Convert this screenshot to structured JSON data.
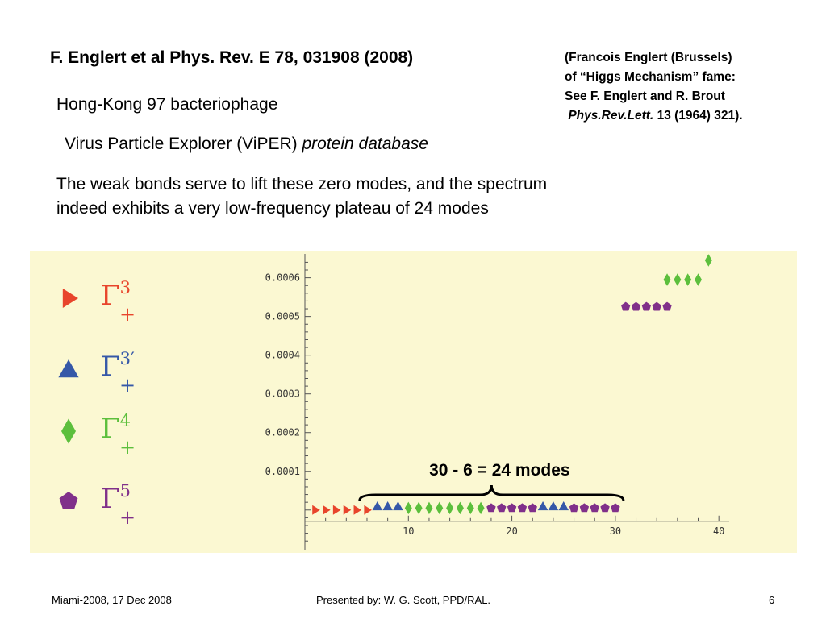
{
  "slide": {
    "reference_title": "F. Englert et al Phys. Rev. E 78, 031908 (2008)",
    "side_note": {
      "line1": "(Francois Englert (Brussels)",
      "line2": "of “Higgs Mechanism” fame:",
      "line3": "See F. Englert and R. Brout",
      "journal": "Phys.Rev.Lett.",
      "citation": " 13 (1964) 321)."
    },
    "phage_line": "Hong-Kong 97 bacteriophage",
    "viper_line": {
      "text": "Virus Particle Explorer (ViPER) ",
      "italic": "protein database"
    },
    "paragraph": {
      "line1": "The weak bonds serve to lift these zero modes, and the spectrum",
      "line2": "indeed exhibits a very low-frequency plateau of 24 modes"
    },
    "footer": {
      "left": "Miami-2008, 17 Dec 2008",
      "center": "Presented by:  W. G. Scott, PPD/RAL.",
      "page": "6"
    }
  },
  "chart_data": {
    "type": "scatter",
    "annotation": "30 - 6 = 24 modes",
    "bracket_range": [
      7,
      30
    ],
    "xlim": [
      0,
      41
    ],
    "ylim": [
      -9e-05,
      0.00067
    ],
    "x_ticks": [
      10,
      20,
      30,
      40
    ],
    "y_ticks": [
      0.0001,
      0.0002,
      0.0003,
      0.0004,
      0.0005,
      0.0006
    ],
    "y_tick_labels": [
      "0.0001",
      "0.0002",
      "0.0003",
      "0.0004",
      "0.0005",
      "0.0006"
    ],
    "grid": false,
    "legend_position": "left",
    "series": [
      {
        "symbol": "right-triangle",
        "color": "#e8452c",
        "label_base": "Γ",
        "label_sup": "3",
        "label_sub": "+",
        "points": [
          [
            1,
            0
          ],
          [
            2,
            0
          ],
          [
            3,
            0
          ],
          [
            4,
            0
          ],
          [
            5,
            0
          ],
          [
            6,
            0
          ]
        ]
      },
      {
        "symbol": "triangle",
        "color": "#3558a8",
        "label_base": "Γ",
        "label_sup": "3′",
        "label_sub": "+",
        "points": [
          [
            7,
            1e-05
          ],
          [
            8,
            1e-05
          ],
          [
            9,
            1e-05
          ],
          [
            23,
            1e-05
          ],
          [
            24,
            1e-05
          ],
          [
            25,
            1e-05
          ]
        ]
      },
      {
        "symbol": "diamond",
        "color": "#5cbf3c",
        "label_base": "Γ",
        "label_sup": "4",
        "label_sub": "+",
        "points": [
          [
            10,
            5e-06
          ],
          [
            11,
            5e-06
          ],
          [
            12,
            5e-06
          ],
          [
            13,
            5e-06
          ],
          [
            14,
            5e-06
          ],
          [
            15,
            5e-06
          ],
          [
            16,
            5e-06
          ],
          [
            17,
            5e-06
          ],
          [
            35,
            0.000595
          ],
          [
            36,
            0.000595
          ],
          [
            37,
            0.000595
          ],
          [
            38,
            0.000595
          ],
          [
            39,
            0.000645
          ]
        ]
      },
      {
        "symbol": "pentagon",
        "color": "#80308a",
        "label_base": "Γ",
        "label_sup": "5",
        "label_sub": "+",
        "points": [
          [
            18,
            5e-06
          ],
          [
            19,
            5e-06
          ],
          [
            20,
            5e-06
          ],
          [
            21,
            5e-06
          ],
          [
            22,
            5e-06
          ],
          [
            26,
            5e-06
          ],
          [
            27,
            5e-06
          ],
          [
            28,
            5e-06
          ],
          [
            29,
            5e-06
          ],
          [
            30,
            5e-06
          ],
          [
            31,
            0.000525
          ],
          [
            32,
            0.000525
          ],
          [
            33,
            0.000525
          ],
          [
            34,
            0.000525
          ],
          [
            35,
            0.000525
          ]
        ]
      }
    ]
  }
}
